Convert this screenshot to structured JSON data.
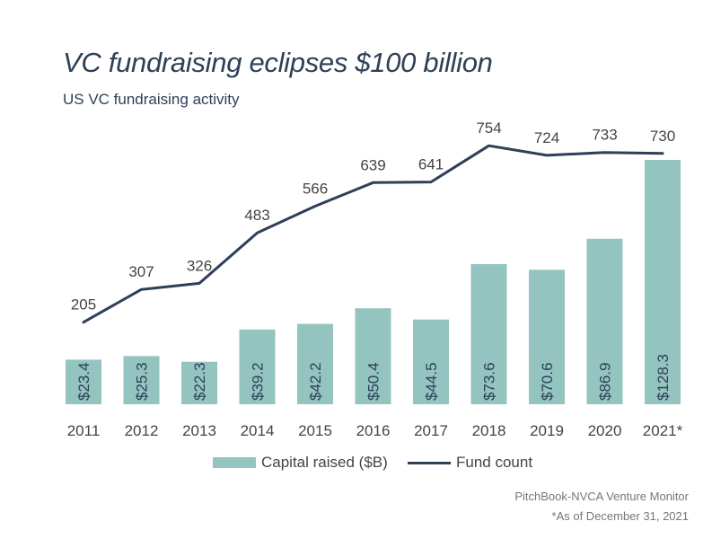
{
  "title": "VC fundraising eclipses $100 billion",
  "subtitle": "US VC fundraising activity",
  "colors": {
    "bar": "#93c4bf",
    "line": "#2e4057",
    "text": "#444444",
    "bar_label": "#2e4057"
  },
  "chart_data": {
    "type": "bar+line",
    "title": "VC fundraising eclipses $100 billion",
    "subtitle": "US VC fundraising activity",
    "categories": [
      "2011",
      "2012",
      "2013",
      "2014",
      "2015",
      "2016",
      "2017",
      "2018",
      "2019",
      "2020",
      "2021*"
    ],
    "series": [
      {
        "name": "Capital raised ($B)",
        "type": "bar",
        "values": [
          23.4,
          25.3,
          22.3,
          39.2,
          42.2,
          50.4,
          44.5,
          73.6,
          70.6,
          86.9,
          128.3
        ],
        "labels": [
          "$23.4",
          "$25.3",
          "$22.3",
          "$39.2",
          "$42.2",
          "$50.4",
          "$44.5",
          "$73.6",
          "$70.6",
          "$86.9",
          "$128.3"
        ]
      },
      {
        "name": "Fund count",
        "type": "line",
        "values": [
          205,
          307,
          326,
          483,
          566,
          639,
          641,
          754,
          724,
          733,
          730
        ],
        "labels": [
          "205",
          "307",
          "326",
          "483",
          "566",
          "639",
          "641",
          "754",
          "724",
          "733",
          "730"
        ]
      }
    ],
    "bar_ylim": [
      0,
      128.3
    ],
    "line_ylim": [
      112,
      788
    ],
    "grid": false,
    "legend_position": "bottom-center"
  },
  "legend": {
    "bar_label": "Capital raised ($B)",
    "line_label": "Fund count"
  },
  "source": {
    "line1": "PitchBook-NVCA Venture Monitor",
    "line2": "*As of December 31, 2021"
  }
}
